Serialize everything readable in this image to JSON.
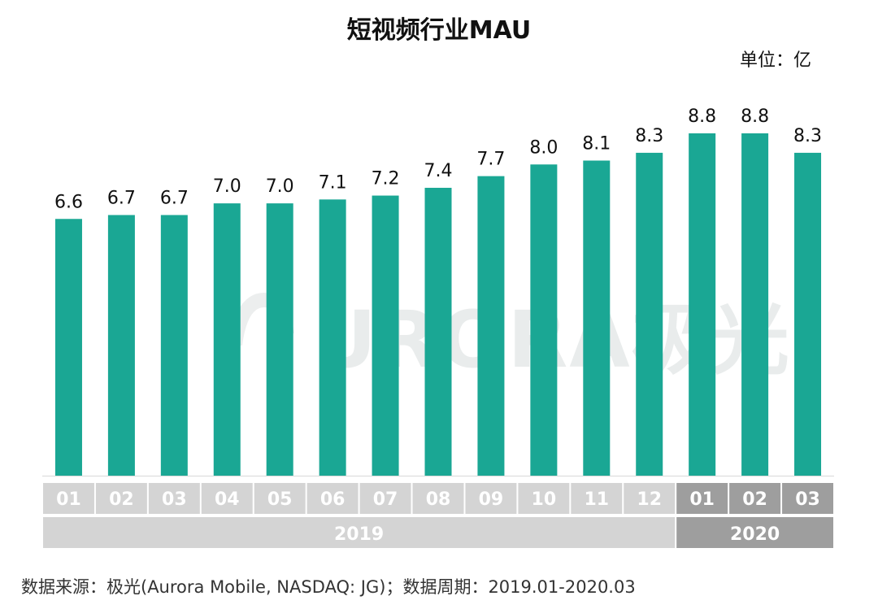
{
  "title": "短视频行业MAU",
  "unit_label": "单位：亿",
  "source": "数据来源：极光(Aurora Mobile, NASDAQ: JG)；数据周期：2019.01-2020.03",
  "watermark": "URORA极光",
  "colors": {
    "bar": "#1aa794",
    "month_2019": "#d4d4d4",
    "month_2020": "#9e9e9e",
    "year_2019": "#d4d4d4",
    "year_2020": "#9e9e9e"
  },
  "chart_data": {
    "type": "bar",
    "title": "短视频行业MAU",
    "ylabel": "单位：亿",
    "categories": [
      "01",
      "02",
      "03",
      "04",
      "05",
      "06",
      "07",
      "08",
      "09",
      "10",
      "11",
      "12",
      "01",
      "02",
      "03"
    ],
    "years": [
      {
        "label": "2019",
        "count": 12
      },
      {
        "label": "2020",
        "count": 3
      }
    ],
    "values": [
      6.6,
      6.7,
      6.7,
      7.0,
      7.0,
      7.1,
      7.2,
      7.4,
      7.7,
      8.0,
      8.1,
      8.3,
      8.8,
      8.8,
      8.3
    ],
    "value_labels": [
      "6.6",
      "6.7",
      "6.7",
      "7.0",
      "7.0",
      "7.1",
      "7.2",
      "7.4",
      "7.7",
      "8.0",
      "8.1",
      "8.3",
      "8.8",
      "8.8",
      "8.3"
    ],
    "ylim": [
      0,
      8.8
    ]
  }
}
